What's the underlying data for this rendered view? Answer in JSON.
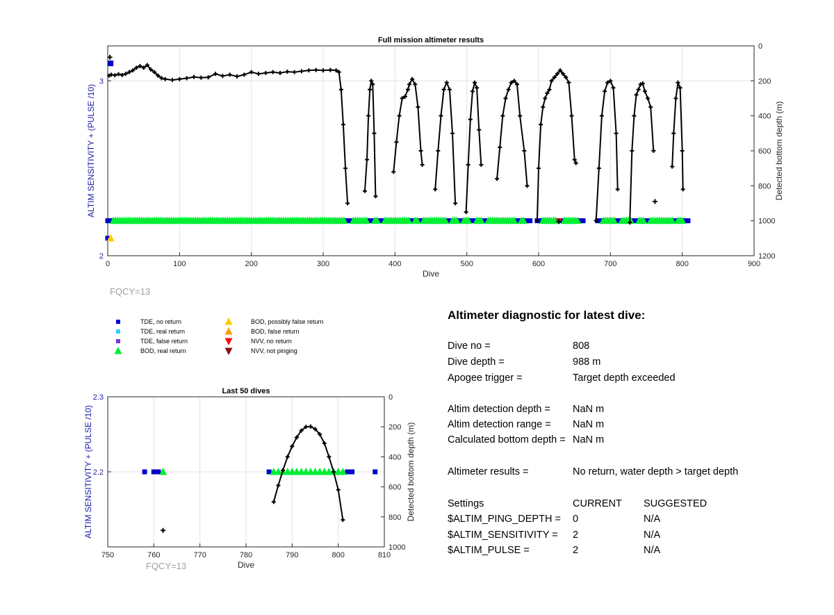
{
  "chart_data": [
    {
      "type": "scatter",
      "title": "Full mission altimeter results",
      "xlabel": "Dive",
      "ylabel": "ALTIM SENSITIVITY + (PULSE /10)",
      "y2label": "Detected bottom depth (m)",
      "xlim": [
        0,
        900
      ],
      "ylim": [
        2,
        3.2
      ],
      "y2lim": [
        0,
        1200
      ],
      "y2_reversed": true,
      "xticks": [
        0,
        100,
        200,
        300,
        400,
        500,
        600,
        700,
        800,
        900
      ],
      "yticks": [
        2,
        3
      ],
      "y2ticks": [
        0,
        200,
        400,
        600,
        800,
        1000,
        1200
      ],
      "grid": true,
      "note": "FQCY=13",
      "depth_series": {
        "name": "Detected bottom depth",
        "segments": [
          [
            [
              2,
              170
            ],
            [
              5,
              165
            ],
            [
              10,
              168
            ],
            [
              15,
              162
            ],
            [
              20,
              167
            ],
            [
              25,
              160
            ],
            [
              30,
              150
            ],
            [
              35,
              140
            ],
            [
              40,
              125
            ],
            [
              45,
              115
            ],
            [
              50,
              125
            ],
            [
              55,
              110
            ],
            [
              60,
              135
            ],
            [
              65,
              150
            ],
            [
              70,
              170
            ],
            [
              75,
              185
            ],
            [
              80,
              190
            ],
            [
              90,
              195
            ],
            [
              100,
              190
            ],
            [
              110,
              185
            ],
            [
              120,
              178
            ],
            [
              130,
              182
            ],
            [
              140,
              180
            ],
            [
              150,
              160
            ],
            [
              160,
              172
            ],
            [
              170,
              165
            ],
            [
              180,
              175
            ],
            [
              190,
              165
            ],
            [
              200,
              150
            ],
            [
              210,
              160
            ],
            [
              220,
              155
            ],
            [
              230,
              150
            ],
            [
              240,
              155
            ],
            [
              250,
              148
            ],
            [
              260,
              150
            ],
            [
              270,
              145
            ],
            [
              280,
              140
            ],
            [
              290,
              138
            ],
            [
              300,
              140
            ],
            [
              310,
              138
            ],
            [
              318,
              140
            ],
            [
              322,
              150
            ],
            [
              325,
              250
            ],
            [
              328,
              450
            ],
            [
              331,
              700
            ],
            [
              334,
              900
            ]
          ],
          [
            [
              358,
              830
            ],
            [
              361,
              650
            ],
            [
              363,
              400
            ],
            [
              365,
              250
            ],
            [
              367,
              200
            ],
            [
              369,
              220
            ],
            [
              371,
              500
            ],
            [
              373,
              860
            ]
          ],
          [
            [
              398,
              720
            ],
            [
              402,
              550
            ],
            [
              406,
              400
            ],
            [
              410,
              300
            ],
            [
              414,
              290
            ],
            [
              418,
              250
            ],
            [
              420,
              220
            ],
            [
              424,
              190
            ],
            [
              428,
              220
            ],
            [
              432,
              350
            ],
            [
              436,
              600
            ],
            [
              438,
              680
            ]
          ],
          [
            [
              456,
              820
            ],
            [
              460,
              600
            ],
            [
              464,
              400
            ],
            [
              468,
              250
            ],
            [
              472,
              210
            ],
            [
              476,
              250
            ],
            [
              480,
              500
            ],
            [
              484,
              900
            ]
          ],
          [
            [
              499,
              950
            ],
            [
              502,
              680
            ],
            [
              505,
              420
            ],
            [
              508,
              260
            ],
            [
              511,
              210
            ],
            [
              514,
              240
            ],
            [
              517,
              480
            ],
            [
              520,
              680
            ]
          ],
          [
            [
              542,
              760
            ],
            [
              546,
              580
            ],
            [
              550,
              400
            ],
            [
              554,
              300
            ],
            [
              558,
              250
            ],
            [
              562,
              210
            ],
            [
              566,
              200
            ],
            [
              570,
              220
            ],
            [
              574,
              400
            ],
            [
              580,
              600
            ],
            [
              584,
              800
            ]
          ],
          [
            [
              598,
              1000
            ],
            [
              600,
              700
            ],
            [
              603,
              450
            ],
            [
              606,
              350
            ],
            [
              609,
              300
            ],
            [
              612,
              270
            ],
            [
              615,
              250
            ],
            [
              618,
              200
            ],
            [
              622,
              180
            ],
            [
              626,
              160
            ],
            [
              630,
              140
            ],
            [
              634,
              160
            ],
            [
              638,
              180
            ],
            [
              642,
              210
            ],
            [
              646,
              400
            ],
            [
              650,
              650
            ],
            [
              652,
              670
            ]
          ],
          [
            [
              680,
              1000
            ],
            [
              684,
              700
            ],
            [
              688,
              400
            ],
            [
              692,
              260
            ],
            [
              696,
              210
            ],
            [
              700,
              200
            ],
            [
              704,
              240
            ],
            [
              708,
              500
            ],
            [
              710,
              820
            ]
          ],
          [
            [
              727,
              1010
            ],
            [
              730,
              600
            ],
            [
              733,
              400
            ],
            [
              736,
              280
            ],
            [
              739,
              250
            ],
            [
              742,
              220
            ],
            [
              745,
              215
            ],
            [
              748,
              260
            ],
            [
              752,
              300
            ],
            [
              756,
              350
            ],
            [
              760,
              600
            ]
          ],
          [
            [
              786,
              690
            ],
            [
              788,
              500
            ],
            [
              791,
              300
            ],
            [
              794,
              210
            ],
            [
              797,
              240
            ],
            [
              800,
              600
            ],
            [
              801,
              820
            ]
          ]
        ],
        "outliers": [
          [
            3,
            65
          ],
          [
            628,
            1005
          ],
          [
            762,
            890
          ]
        ]
      },
      "markers": {
        "tde_no_return_xranges": [
          [
            0,
            8
          ],
          [
            330,
            340
          ],
          [
            362,
            372
          ],
          [
            376,
            386
          ],
          [
            420,
            428
          ],
          [
            432,
            440
          ],
          [
            470,
            480
          ],
          [
            486,
            496
          ],
          [
            504,
            514
          ],
          [
            520,
            530
          ],
          [
            566,
            576
          ],
          [
            580,
            590
          ],
          [
            598,
            606
          ],
          [
            626,
            636
          ],
          [
            654,
            664
          ],
          [
            682,
            690
          ],
          [
            706,
            716
          ],
          [
            730,
            740
          ],
          [
            746,
            756
          ],
          [
            786,
            794
          ],
          [
            800,
            808
          ]
        ],
        "bod_real_return_xranges": [
          [
            8,
            330
          ],
          [
            342,
            362
          ],
          [
            372,
            376
          ],
          [
            386,
            420
          ],
          [
            428,
            432
          ],
          [
            440,
            470
          ],
          [
            480,
            486
          ],
          [
            496,
            504
          ],
          [
            514,
            520
          ],
          [
            530,
            566
          ],
          [
            576,
            580
          ],
          [
            606,
            626
          ],
          [
            636,
            654
          ],
          [
            690,
            706
          ],
          [
            716,
            730
          ],
          [
            740,
            746
          ],
          [
            756,
            786
          ],
          [
            794,
            800
          ]
        ],
        "tde_no_return_high_x": 4,
        "bod_possibly_false_x": 4
      }
    },
    {
      "type": "scatter",
      "title": "Last 50 dives",
      "xlabel": "Dive",
      "ylabel": "ALTIM SENSITIVITY + (PULSE /10)",
      "y2label": "Detected bottom depth (m)",
      "xlim": [
        750,
        810
      ],
      "ylim": [
        2.1,
        2.3
      ],
      "y2lim": [
        0,
        1000
      ],
      "y2_reversed": true,
      "xticks": [
        750,
        760,
        770,
        780,
        790,
        800,
        810
      ],
      "yticks": [
        2.2,
        2.3
      ],
      "y2ticks": [
        0,
        200,
        400,
        600,
        800,
        1000
      ],
      "grid": true,
      "note": "FQCY=13",
      "depth_series": {
        "name": "Detected bottom depth",
        "points": [
          [
            786,
            700
          ],
          [
            787,
            590
          ],
          [
            788,
            490
          ],
          [
            789,
            400
          ],
          [
            790,
            330
          ],
          [
            791,
            270
          ],
          [
            792,
            225
          ],
          [
            793,
            200
          ],
          [
            794,
            198
          ],
          [
            795,
            215
          ],
          [
            796,
            250
          ],
          [
            797,
            310
          ],
          [
            798,
            400
          ],
          [
            799,
            500
          ],
          [
            800,
            620
          ],
          [
            801,
            820
          ]
        ],
        "outliers": [
          [
            762,
            890
          ]
        ]
      },
      "markers": {
        "tde_no_return_x": [
          758,
          760,
          761,
          785,
          802,
          803,
          808
        ],
        "bod_real_return_x": [
          762,
          786,
          787,
          788,
          789,
          790,
          791,
          792,
          793,
          794,
          795,
          796,
          797,
          798,
          799,
          800,
          801
        ]
      }
    }
  ],
  "legend": {
    "items": [
      {
        "label": "TDE, no return",
        "color": "#0000cc",
        "shape": "square"
      },
      {
        "label": "TDE, real return",
        "color": "#33ccff",
        "shape": "square"
      },
      {
        "label": "TDE, false return",
        "color": "#7b38d8",
        "shape": "square"
      },
      {
        "label": "BOD, real return",
        "color": "#00ee33",
        "shape": "triangle-up"
      },
      {
        "label": "BOD, possibly false return",
        "color": "#ffcc00",
        "shape": "triangle-up"
      },
      {
        "label": "BOD, false return",
        "color": "#ff9900",
        "shape": "triangle-up"
      },
      {
        "label": "NVV, no return",
        "color": "#ee1111",
        "shape": "triangle-down"
      },
      {
        "label": "NVV, not pinging",
        "color": "#881111",
        "shape": "triangle-down"
      }
    ]
  },
  "diagnostic": {
    "title": "Altimeter diagnostic for latest dive:",
    "rows": [
      {
        "label": "Dive no =",
        "value": "808"
      },
      {
        "label": "Dive depth =",
        "value": "988 m"
      },
      {
        "label": "Apogee trigger =",
        "value": "Target depth exceeded"
      },
      {
        "label": "Altim detection depth =",
        "value": "NaN m"
      },
      {
        "label": "Altim detection range =",
        "value": "NaN m"
      },
      {
        "label": "Calculated bottom depth =",
        "value": "NaN m"
      },
      {
        "label": "Altimeter results =",
        "value": "No return, water depth > target depth"
      }
    ],
    "settings": {
      "header": [
        "Settings",
        "CURRENT",
        "SUGGESTED"
      ],
      "rows": [
        [
          "$ALTIM_PING_DEPTH =",
          "0",
          "N/A"
        ],
        [
          "$ALTIM_SENSITIVITY =",
          "2",
          "N/A"
        ],
        [
          "$ALTIM_PULSE =",
          "2",
          "N/A"
        ]
      ]
    }
  },
  "colors": {
    "axis_blue": "#1a1aa6",
    "grid": "#e3e3e3",
    "note_gray": "#a0a0a0"
  }
}
